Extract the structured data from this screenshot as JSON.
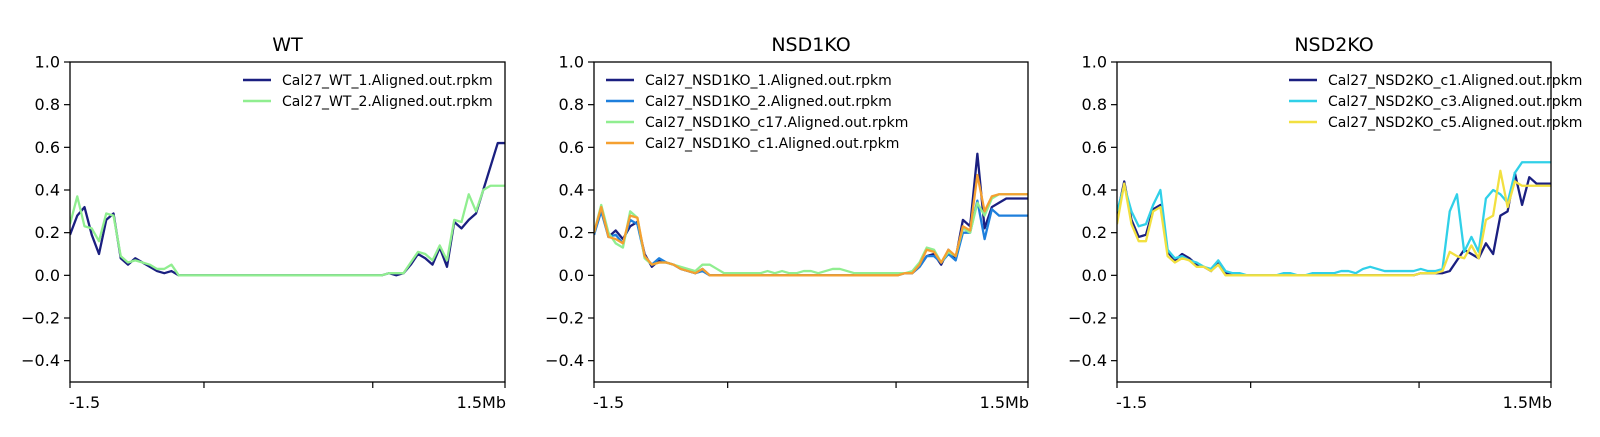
{
  "chart_data": [
    {
      "type": "line",
      "title": "WT",
      "xlabel": "",
      "ylabel": "",
      "ylim": [
        -0.5,
        1.0
      ],
      "yticks": [
        -0.4,
        -0.2,
        0.0,
        0.2,
        0.4,
        0.6,
        0.8,
        1.0
      ],
      "xtick_labels": [
        "-1.5",
        "",
        "",
        "1.5Mb"
      ],
      "legend_position": "top-right",
      "grid": false,
      "x": [
        0,
        1,
        2,
        3,
        4,
        5,
        6,
        7,
        8,
        9,
        10,
        11,
        12,
        13,
        14,
        15,
        16,
        17,
        18,
        19,
        20,
        21,
        22,
        23,
        24,
        25,
        26,
        27,
        28,
        29,
        30,
        31,
        32,
        33,
        34,
        35,
        36,
        37,
        38,
        39,
        40,
        41,
        42,
        43,
        44,
        45,
        46,
        47,
        48,
        49,
        50,
        51,
        52,
        53,
        54,
        55,
        56,
        57,
        58,
        59,
        60
      ],
      "series": [
        {
          "name": "Cal27_WT_1.Aligned.out.rpkm",
          "color": "#1a1f80",
          "values": [
            0.19,
            0.28,
            0.32,
            0.19,
            0.1,
            0.26,
            0.29,
            0.08,
            0.05,
            0.08,
            0.06,
            0.04,
            0.02,
            0.01,
            0.02,
            0.0,
            0.0,
            0.0,
            0.0,
            0.0,
            0.0,
            0.0,
            0.0,
            0.0,
            0.0,
            0.0,
            0.0,
            0.0,
            0.0,
            0.0,
            0.0,
            0.0,
            0.0,
            0.0,
            0.0,
            0.0,
            0.0,
            0.0,
            0.0,
            0.0,
            0.0,
            0.0,
            0.0,
            0.0,
            0.01,
            0.0,
            0.01,
            0.05,
            0.1,
            0.08,
            0.05,
            0.13,
            0.04,
            0.25,
            0.22,
            0.26,
            0.29,
            0.4,
            0.51,
            0.62,
            0.62
          ]
        },
        {
          "name": "Cal27_WT_2.Aligned.out.rpkm",
          "color": "#90ee90",
          "values": [
            0.24,
            0.37,
            0.23,
            0.22,
            0.16,
            0.29,
            0.28,
            0.09,
            0.06,
            0.07,
            0.06,
            0.05,
            0.03,
            0.03,
            0.05,
            0.0,
            0.0,
            0.0,
            0.0,
            0.0,
            0.0,
            0.0,
            0.0,
            0.0,
            0.0,
            0.0,
            0.0,
            0.0,
            0.0,
            0.0,
            0.0,
            0.0,
            0.0,
            0.0,
            0.0,
            0.0,
            0.0,
            0.0,
            0.0,
            0.0,
            0.0,
            0.0,
            0.0,
            0.0,
            0.01,
            0.01,
            0.01,
            0.06,
            0.11,
            0.1,
            0.07,
            0.14,
            0.07,
            0.26,
            0.25,
            0.38,
            0.3,
            0.4,
            0.42,
            0.42,
            0.42
          ]
        }
      ]
    },
    {
      "type": "line",
      "title": "NSD1KO",
      "xlabel": "",
      "ylabel": "",
      "ylim": [
        -0.5,
        1.0
      ],
      "yticks": [
        -0.4,
        -0.2,
        0.0,
        0.2,
        0.4,
        0.6,
        0.8,
        1.0
      ],
      "xtick_labels": [
        "-1.5",
        "",
        "",
        "1.5Mb"
      ],
      "legend_position": "top-left",
      "grid": false,
      "x": [
        0,
        1,
        2,
        3,
        4,
        5,
        6,
        7,
        8,
        9,
        10,
        11,
        12,
        13,
        14,
        15,
        16,
        17,
        18,
        19,
        20,
        21,
        22,
        23,
        24,
        25,
        26,
        27,
        28,
        29,
        30,
        31,
        32,
        33,
        34,
        35,
        36,
        37,
        38,
        39,
        40,
        41,
        42,
        43,
        44,
        45,
        46,
        47,
        48,
        49,
        50,
        51,
        52,
        53,
        54,
        55,
        56,
        57,
        58,
        59,
        60
      ],
      "series": [
        {
          "name": "Cal27_NSD1KO_1.Aligned.out.rpkm",
          "color": "#1a1f80",
          "values": [
            0.19,
            0.32,
            0.18,
            0.21,
            0.17,
            0.23,
            0.25,
            0.1,
            0.04,
            0.07,
            0.06,
            0.05,
            0.03,
            0.02,
            0.01,
            0.03,
            0.0,
            0.0,
            0.0,
            0.0,
            0.0,
            0.0,
            0.0,
            0.0,
            0.0,
            0.0,
            0.0,
            0.0,
            0.0,
            0.0,
            0.0,
            0.0,
            0.0,
            0.0,
            0.0,
            0.0,
            0.0,
            0.0,
            0.0,
            0.0,
            0.0,
            0.0,
            0.01,
            0.01,
            0.01,
            0.04,
            0.09,
            0.1,
            0.05,
            0.12,
            0.08,
            0.26,
            0.23,
            0.57,
            0.22,
            0.32,
            0.34,
            0.36,
            0.36,
            0.36,
            0.36
          ]
        },
        {
          "name": "Cal27_NSD1KO_2.Aligned.out.rpkm",
          "color": "#1e7fdc",
          "values": [
            0.19,
            0.3,
            0.18,
            0.19,
            0.15,
            0.26,
            0.24,
            0.09,
            0.05,
            0.08,
            0.06,
            0.05,
            0.03,
            0.02,
            0.01,
            0.02,
            0.0,
            0.0,
            0.0,
            0.0,
            0.0,
            0.0,
            0.0,
            0.0,
            0.0,
            0.0,
            0.0,
            0.0,
            0.0,
            0.0,
            0.0,
            0.0,
            0.0,
            0.0,
            0.0,
            0.0,
            0.0,
            0.0,
            0.0,
            0.0,
            0.0,
            0.0,
            0.0,
            0.01,
            0.01,
            0.04,
            0.09,
            0.09,
            0.06,
            0.1,
            0.07,
            0.2,
            0.2,
            0.35,
            0.17,
            0.31,
            0.28,
            0.28,
            0.28,
            0.28,
            0.28
          ]
        },
        {
          "name": "Cal27_NSD1KO_c17.Aligned.out.rpkm",
          "color": "#90ee90",
          "values": [
            0.2,
            0.33,
            0.2,
            0.15,
            0.13,
            0.3,
            0.27,
            0.08,
            0.05,
            0.06,
            0.06,
            0.05,
            0.04,
            0.03,
            0.02,
            0.05,
            0.05,
            0.03,
            0.01,
            0.01,
            0.01,
            0.01,
            0.01,
            0.01,
            0.02,
            0.01,
            0.02,
            0.01,
            0.01,
            0.02,
            0.02,
            0.01,
            0.02,
            0.03,
            0.03,
            0.02,
            0.01,
            0.01,
            0.01,
            0.01,
            0.01,
            0.01,
            0.01,
            0.01,
            0.02,
            0.06,
            0.13,
            0.12,
            0.06,
            0.11,
            0.09,
            0.22,
            0.2,
            0.34,
            0.28,
            0.36,
            0.38,
            0.38,
            0.38,
            0.38,
            0.38
          ]
        },
        {
          "name": "Cal27_NSD1KO_c1.Aligned.out.rpkm",
          "color": "#f5a030",
          "values": [
            0.2,
            0.32,
            0.18,
            0.17,
            0.15,
            0.28,
            0.27,
            0.09,
            0.05,
            0.06,
            0.06,
            0.05,
            0.03,
            0.02,
            0.01,
            0.03,
            0.0,
            0.0,
            0.0,
            0.0,
            0.0,
            0.0,
            0.0,
            0.0,
            0.0,
            0.0,
            0.0,
            0.0,
            0.0,
            0.0,
            0.0,
            0.0,
            0.0,
            0.0,
            0.0,
            0.0,
            0.0,
            0.0,
            0.0,
            0.0,
            0.0,
            0.0,
            0.0,
            0.01,
            0.01,
            0.05,
            0.12,
            0.11,
            0.06,
            0.12,
            0.09,
            0.23,
            0.21,
            0.47,
            0.3,
            0.37,
            0.38,
            0.38,
            0.38,
            0.38,
            0.38
          ]
        }
      ]
    },
    {
      "type": "line",
      "title": "NSD2KO",
      "xlabel": "",
      "ylabel": "",
      "ylim": [
        -0.5,
        1.0
      ],
      "yticks": [
        -0.4,
        -0.2,
        0.0,
        0.2,
        0.4,
        0.6,
        0.8,
        1.0
      ],
      "xtick_labels": [
        "-1.5",
        "",
        "",
        "1.5Mb"
      ],
      "legend_position": "top-right",
      "grid": false,
      "x": [
        0,
        1,
        2,
        3,
        4,
        5,
        6,
        7,
        8,
        9,
        10,
        11,
        12,
        13,
        14,
        15,
        16,
        17,
        18,
        19,
        20,
        21,
        22,
        23,
        24,
        25,
        26,
        27,
        28,
        29,
        30,
        31,
        32,
        33,
        34,
        35,
        36,
        37,
        38,
        39,
        40,
        41,
        42,
        43,
        44,
        45,
        46,
        47,
        48,
        49,
        50,
        51,
        52,
        53,
        54,
        55,
        56,
        57,
        58,
        59,
        60
      ],
      "series": [
        {
          "name": "Cal27_NSD2KO_c1.Aligned.out.rpkm",
          "color": "#1a1f80",
          "values": [
            0.28,
            0.44,
            0.26,
            0.18,
            0.19,
            0.31,
            0.33,
            0.11,
            0.07,
            0.1,
            0.08,
            0.05,
            0.04,
            0.02,
            0.06,
            0.01,
            0.0,
            0.0,
            0.0,
            0.0,
            0.0,
            0.0,
            0.0,
            0.0,
            0.0,
            0.0,
            0.0,
            0.0,
            0.0,
            0.0,
            0.0,
            0.0,
            0.0,
            0.0,
            0.0,
            0.0,
            0.0,
            0.0,
            0.0,
            0.0,
            0.0,
            0.0,
            0.01,
            0.01,
            0.01,
            0.01,
            0.02,
            0.07,
            0.12,
            0.1,
            0.08,
            0.15,
            0.1,
            0.28,
            0.3,
            0.48,
            0.33,
            0.46,
            0.43,
            0.43,
            0.43
          ]
        },
        {
          "name": "Cal27_NSD2KO_c3.Aligned.out.rpkm",
          "color": "#30d0e8",
          "values": [
            0.3,
            0.42,
            0.3,
            0.23,
            0.24,
            0.33,
            0.4,
            0.12,
            0.08,
            0.09,
            0.07,
            0.06,
            0.04,
            0.03,
            0.07,
            0.02,
            0.01,
            0.01,
            0.0,
            0.0,
            0.0,
            0.0,
            0.0,
            0.01,
            0.01,
            0.0,
            0.0,
            0.01,
            0.01,
            0.01,
            0.01,
            0.02,
            0.02,
            0.01,
            0.03,
            0.04,
            0.03,
            0.02,
            0.02,
            0.02,
            0.02,
            0.02,
            0.03,
            0.02,
            0.02,
            0.03,
            0.3,
            0.38,
            0.11,
            0.18,
            0.11,
            0.36,
            0.4,
            0.38,
            0.34,
            0.48,
            0.53,
            0.53,
            0.53,
            0.53,
            0.53
          ]
        },
        {
          "name": "Cal27_NSD2KO_c5.Aligned.out.rpkm",
          "color": "#f2e040",
          "values": [
            0.24,
            0.43,
            0.24,
            0.16,
            0.16,
            0.3,
            0.32,
            0.09,
            0.06,
            0.08,
            0.07,
            0.04,
            0.04,
            0.02,
            0.05,
            0.0,
            0.0,
            0.0,
            0.0,
            0.0,
            0.0,
            0.0,
            0.0,
            0.0,
            0.0,
            0.0,
            0.0,
            0.0,
            0.0,
            0.0,
            0.0,
            0.0,
            0.0,
            0.0,
            0.0,
            0.0,
            0.0,
            0.0,
            0.0,
            0.0,
            0.0,
            0.0,
            0.01,
            0.01,
            0.01,
            0.02,
            0.11,
            0.09,
            0.08,
            0.14,
            0.08,
            0.26,
            0.28,
            0.49,
            0.32,
            0.44,
            0.42,
            0.42,
            0.42,
            0.42,
            0.42
          ]
        }
      ]
    }
  ]
}
